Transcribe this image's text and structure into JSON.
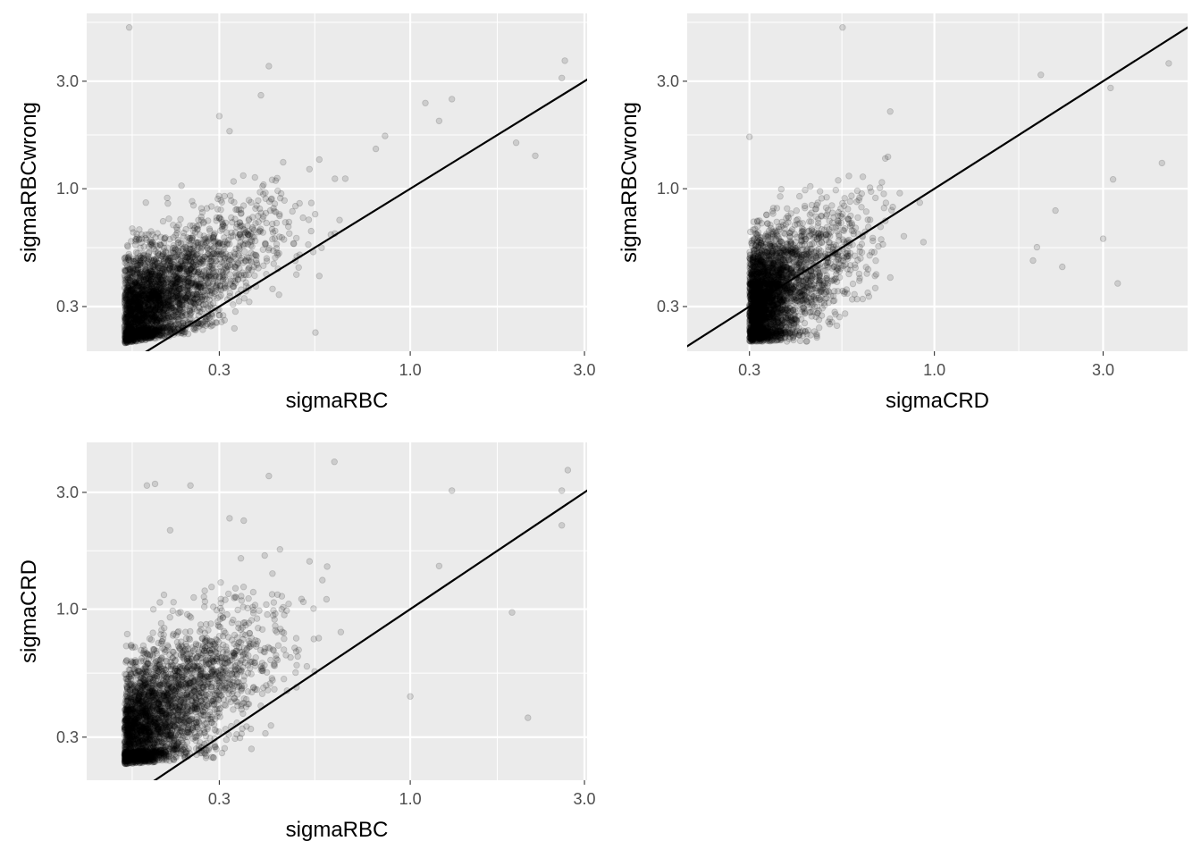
{
  "chart_data": [
    {
      "type": "scatter",
      "xlabel": "sigmaRBC",
      "ylabel": "sigmaRBCwrong",
      "x_scale": "log10",
      "y_scale": "log10",
      "xlim": [
        0.13,
        3.05
      ],
      "ylim": [
        0.19,
        6.0
      ],
      "x_ticks": [
        {
          "value": 0.3,
          "label": "0.3"
        },
        {
          "value": 1.0,
          "label": "1.0"
        },
        {
          "value": 3.0,
          "label": "3.0"
        }
      ],
      "y_ticks": [
        {
          "value": 0.3,
          "label": "0.3"
        },
        {
          "value": 1.0,
          "label": "1.0"
        },
        {
          "value": 3.0,
          "label": "3.0"
        }
      ],
      "reference_line": {
        "slope": 1,
        "intercept": 0
      },
      "point_cloud": {
        "count": 3200,
        "seed": 11,
        "x_min": 0.145,
        "x_mode": 0.165,
        "x_spread": 0.42,
        "x_tail": 0.7,
        "y_ratio_mode": 1.55,
        "y_ratio_spread": 0.3,
        "y_floor": 0.2,
        "y_floor_slope": 0.25,
        "y_cap": 5.0
      },
      "highlight_points": [
        [
          0.17,
          5.2
        ],
        [
          0.41,
          3.5
        ],
        [
          0.39,
          2.6
        ],
        [
          2.65,
          3.7
        ],
        [
          2.6,
          3.1
        ],
        [
          0.3,
          2.1
        ],
        [
          0.32,
          1.8
        ],
        [
          1.3,
          2.5
        ],
        [
          1.2,
          2.0
        ],
        [
          1.95,
          1.6
        ],
        [
          2.2,
          1.4
        ],
        [
          1.1,
          2.4
        ],
        [
          0.55,
          0.23
        ],
        [
          0.33,
          0.24
        ]
      ],
      "grid": true,
      "background": "#ebebeb",
      "point_color": "#000000",
      "point_alpha": 0.13,
      "line_color": "#000000"
    },
    {
      "type": "scatter",
      "xlabel": "sigmaCRD",
      "ylabel": "sigmaRBCwrong",
      "x_scale": "log10",
      "y_scale": "log10",
      "xlim": [
        0.2,
        5.2
      ],
      "ylim": [
        0.19,
        6.0
      ],
      "x_ticks": [
        {
          "value": 0.3,
          "label": "0.3"
        },
        {
          "value": 1.0,
          "label": "1.0"
        },
        {
          "value": 3.0,
          "label": "3.0"
        }
      ],
      "y_ticks": [
        {
          "value": 0.3,
          "label": "0.3"
        },
        {
          "value": 1.0,
          "label": "1.0"
        },
        {
          "value": 3.0,
          "label": "3.0"
        }
      ],
      "reference_line": {
        "slope": 1,
        "intercept": 0
      },
      "point_cloud": {
        "count": 3200,
        "seed": 23,
        "x_min": 0.23,
        "x_mode": 0.3,
        "x_spread": 0.34,
        "x_tail": 0.55,
        "y_ratio_mode": 0.95,
        "y_ratio_spread": 0.32,
        "y_floor": 0.21,
        "y_floor_slope": 0.0,
        "y_cap": 2.8
      },
      "highlight_points": [
        [
          0.55,
          5.2
        ],
        [
          2.0,
          3.2
        ],
        [
          3.15,
          2.8
        ],
        [
          4.4,
          1.3
        ],
        [
          3.2,
          1.1
        ],
        [
          3.3,
          0.38
        ],
        [
          3.0,
          0.6
        ],
        [
          2.2,
          0.8
        ],
        [
          2.3,
          0.45
        ],
        [
          1.9,
          0.48
        ],
        [
          1.95,
          0.55
        ],
        [
          4.6,
          3.6
        ],
        [
          0.75,
          2.2
        ],
        [
          0.3,
          1.7
        ]
      ],
      "grid": true,
      "background": "#ebebeb",
      "point_color": "#000000",
      "point_alpha": 0.13,
      "line_color": "#000000"
    },
    {
      "type": "scatter",
      "xlabel": "sigmaRBC",
      "ylabel": "sigmaCRD",
      "x_scale": "log10",
      "y_scale": "log10",
      "xlim": [
        0.13,
        3.05
      ],
      "ylim": [
        0.2,
        4.8
      ],
      "x_ticks": [
        {
          "value": 0.3,
          "label": "0.3"
        },
        {
          "value": 1.0,
          "label": "1.0"
        },
        {
          "value": 3.0,
          "label": "3.0"
        }
      ],
      "y_ticks": [
        {
          "value": 0.3,
          "label": "0.3"
        },
        {
          "value": 1.0,
          "label": "1.0"
        },
        {
          "value": 3.0,
          "label": "3.0"
        }
      ],
      "reference_line": {
        "slope": 1,
        "intercept": 0
      },
      "point_cloud": {
        "count": 3200,
        "seed": 37,
        "x_min": 0.145,
        "x_mode": 0.165,
        "x_spread": 0.42,
        "x_tail": 0.7,
        "y_ratio_mode": 1.75,
        "y_ratio_spread": 0.33,
        "y_floor": 0.23,
        "y_floor_slope": 0.1,
        "y_cap": 4.0
      },
      "highlight_points": [
        [
          0.62,
          4.0
        ],
        [
          0.41,
          3.5
        ],
        [
          0.19,
          3.2
        ],
        [
          0.2,
          3.25
        ],
        [
          0.25,
          3.2
        ],
        [
          1.3,
          3.05
        ],
        [
          2.6,
          3.05
        ],
        [
          2.7,
          3.7
        ],
        [
          2.6,
          2.2
        ],
        [
          1.9,
          0.97
        ],
        [
          2.1,
          0.36
        ],
        [
          1.0,
          0.44
        ],
        [
          0.32,
          2.35
        ],
        [
          0.35,
          2.3
        ],
        [
          0.22,
          2.1
        ],
        [
          1.2,
          1.5
        ]
      ],
      "grid": true,
      "background": "#ebebeb",
      "point_color": "#000000",
      "point_alpha": 0.13,
      "line_color": "#000000"
    }
  ]
}
